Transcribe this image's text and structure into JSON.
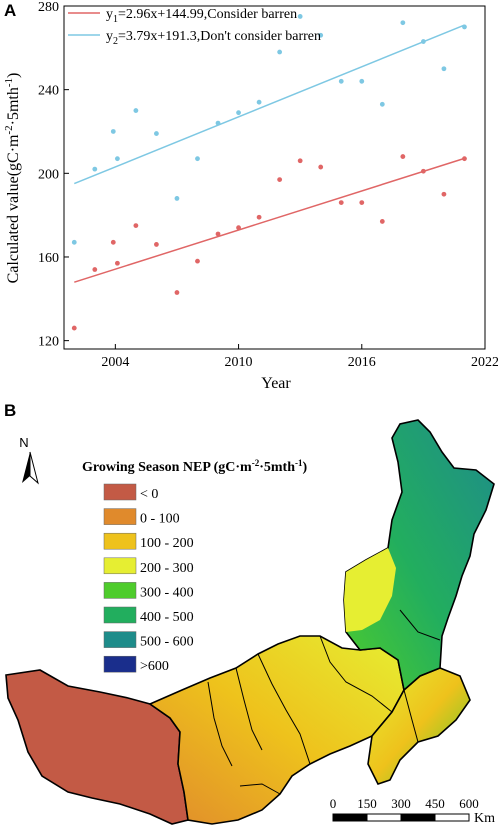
{
  "chart_data": {
    "type": "scatter",
    "panel_label": "A",
    "xlabel": "Year",
    "ylabel_main": "Calculated value(gC·m",
    "ylabel_sup1": "-2",
    "ylabel_mid": "·5mth",
    "ylabel_sup2": "-1",
    "ylabel_end": ")",
    "xlim": [
      2001.5,
      2022
    ],
    "ylim": [
      116,
      280
    ],
    "x_ticks": [
      2004,
      2010,
      2016,
      2022
    ],
    "y_ticks": [
      120,
      160,
      200,
      240,
      280
    ],
    "legend_position": "top-left",
    "series": [
      {
        "name": "Consider barren",
        "color": "#e06666",
        "fit": {
          "sub": "1",
          "slope": 2.96,
          "intercept": 144.99,
          "x0": 2002,
          "x1": 2021,
          "pre": "y",
          "eq": "=2.96x+144.99,Consider barren"
        },
        "points": [
          {
            "x": 2002,
            "y": 126
          },
          {
            "x": 2003,
            "y": 154
          },
          {
            "x": 2003.9,
            "y": 167
          },
          {
            "x": 2004.1,
            "y": 157
          },
          {
            "x": 2005,
            "y": 175
          },
          {
            "x": 2006,
            "y": 166
          },
          {
            "x": 2007,
            "y": 143
          },
          {
            "x": 2008,
            "y": 158
          },
          {
            "x": 2009,
            "y": 171
          },
          {
            "x": 2010,
            "y": 174
          },
          {
            "x": 2011,
            "y": 179
          },
          {
            "x": 2012,
            "y": 197
          },
          {
            "x": 2013,
            "y": 206
          },
          {
            "x": 2014,
            "y": 203
          },
          {
            "x": 2015,
            "y": 186
          },
          {
            "x": 2016,
            "y": 186
          },
          {
            "x": 2017,
            "y": 177
          },
          {
            "x": 2018,
            "y": 208
          },
          {
            "x": 2019,
            "y": 201
          },
          {
            "x": 2020,
            "y": 190
          },
          {
            "x": 2021,
            "y": 207
          }
        ]
      },
      {
        "name": "Don't consider barren",
        "color": "#7ec8e3",
        "fit": {
          "sub": "2",
          "slope": 3.79,
          "intercept": 191.3,
          "x0": 2002,
          "x1": 2021,
          "pre": "y",
          "eq": "=3.79x+191.3,Don't consider barren"
        },
        "points": [
          {
            "x": 2002,
            "y": 167
          },
          {
            "x": 2003,
            "y": 202
          },
          {
            "x": 2003.9,
            "y": 220
          },
          {
            "x": 2004.1,
            "y": 207
          },
          {
            "x": 2005,
            "y": 230
          },
          {
            "x": 2006,
            "y": 219
          },
          {
            "x": 2007,
            "y": 188
          },
          {
            "x": 2008,
            "y": 207
          },
          {
            "x": 2009,
            "y": 224
          },
          {
            "x": 2010,
            "y": 229
          },
          {
            "x": 2011,
            "y": 234
          },
          {
            "x": 2012,
            "y": 258
          },
          {
            "x": 2013,
            "y": 275
          },
          {
            "x": 2014,
            "y": 266
          },
          {
            "x": 2015,
            "y": 244
          },
          {
            "x": 2016,
            "y": 244
          },
          {
            "x": 2017,
            "y": 233
          },
          {
            "x": 2018,
            "y": 272
          },
          {
            "x": 2019,
            "y": 263
          },
          {
            "x": 2020,
            "y": 250
          },
          {
            "x": 2021,
            "y": 270
          }
        ]
      }
    ]
  },
  "map": {
    "panel_label": "B",
    "north_label": "N",
    "legend_title": "Growing Season NEP (gC·m",
    "legend_sup1": "-2",
    "legend_mid": "·5mth",
    "legend_sup2": "-1",
    "legend_end": ")",
    "legend_items": [
      {
        "label": "< 0",
        "color": "#c35a45"
      },
      {
        "label": "0 - 100",
        "color": "#e08a2c"
      },
      {
        "label": "100 - 200",
        "color": "#eec21c"
      },
      {
        "label": "200 - 300",
        "color": "#e6ee32"
      },
      {
        "label": "300 - 400",
        "color": "#4ecc2c"
      },
      {
        "label": "400 - 500",
        "color": "#22ae5e"
      },
      {
        "label": "500 - 600",
        "color": "#1e8c8a"
      },
      {
        "label": ">600",
        "color": "#1a2e8c"
      }
    ],
    "scalebar_ticks": [
      "0",
      "150",
      "300",
      "450",
      "600"
    ],
    "scalebar_unit": "Km"
  }
}
